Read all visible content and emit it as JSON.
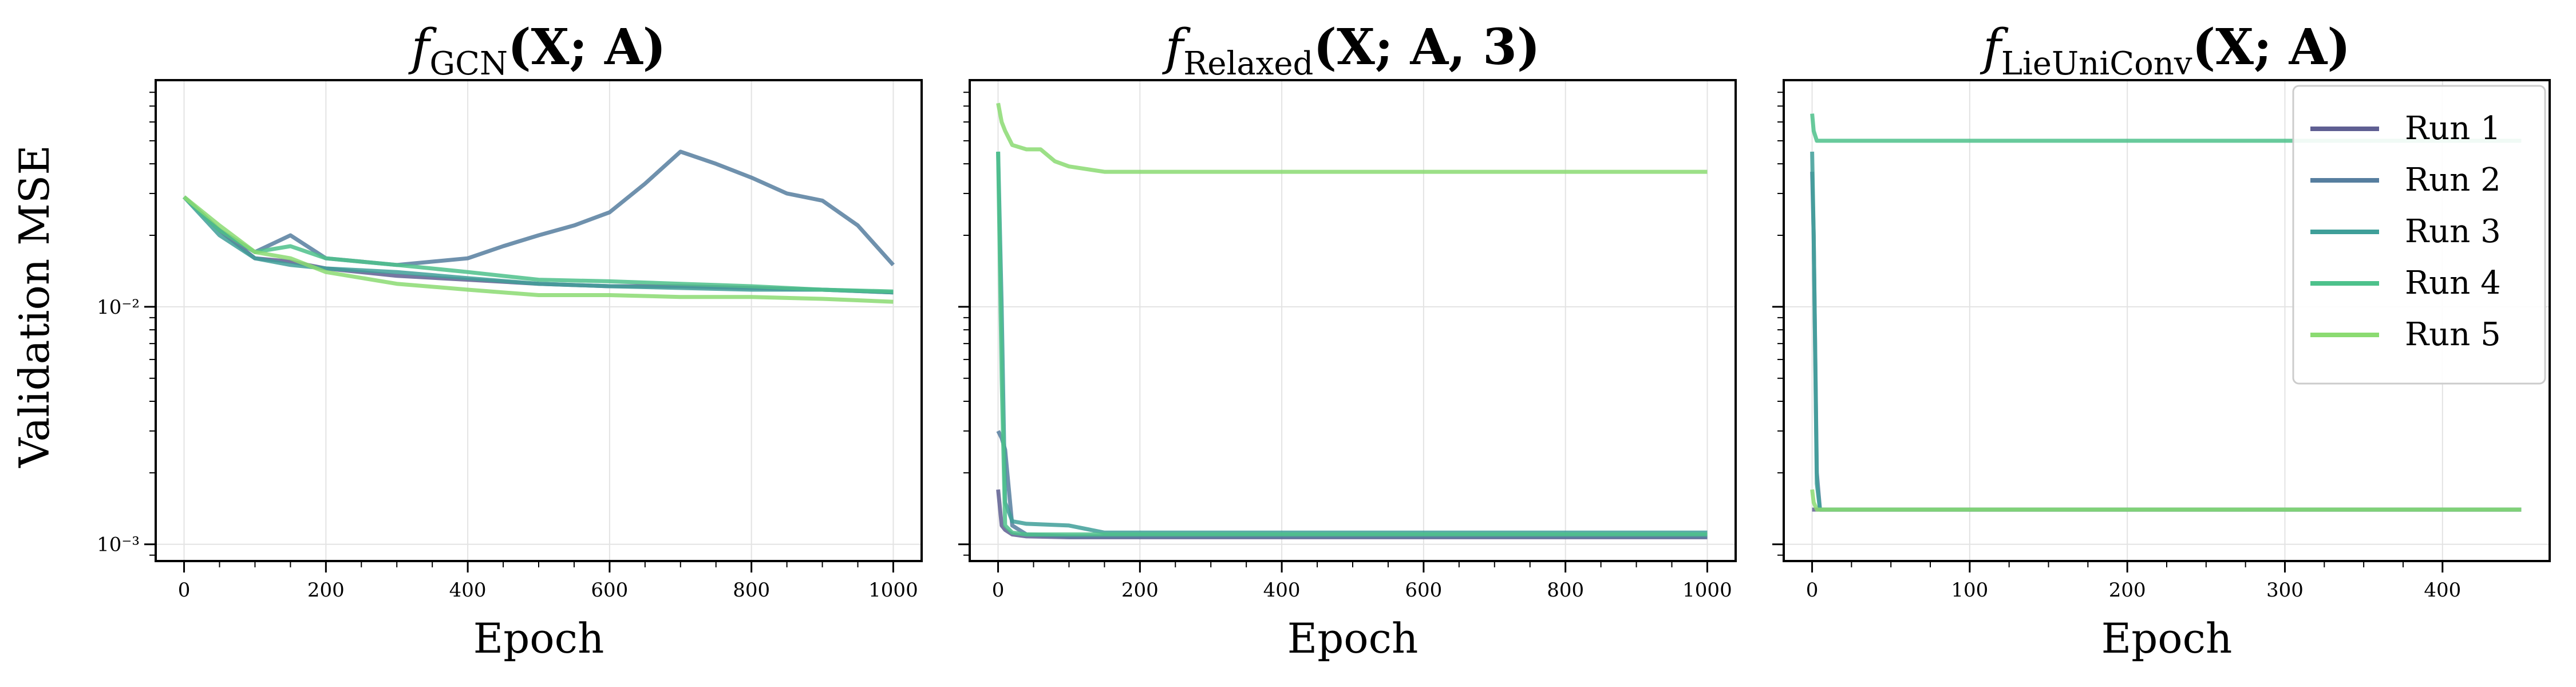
{
  "figure": {
    "ylabel": "Validation MSE",
    "xlabel": "Epoch",
    "yscale": "log",
    "grid": true,
    "legend_location": "top-right (third panel)"
  },
  "legend": {
    "entries": [
      "Run 1",
      "Run 2",
      "Run 3",
      "Run 4",
      "Run 5"
    ]
  },
  "colors": {
    "Run 1": "#5f5f92",
    "Run 2": "#567e9f",
    "Run 3": "#3f9f99",
    "Run 4": "#4dc18b",
    "Run 5": "#8bdb72"
  },
  "chart_data": [
    {
      "type": "line",
      "title_main": "f",
      "title_sub": "GCN",
      "title_args": "(X; A)",
      "xlabel": "Epoch",
      "ylabel": "Validation MSE",
      "xlim": [
        -40,
        1040
      ],
      "ylim": [
        0.00085,
        0.09
      ],
      "xticks": [
        0,
        200,
        400,
        600,
        800,
        1000
      ],
      "yticks": [
        0.001,
        0.01
      ],
      "ytick_labels": [
        "10⁻³",
        "10⁻²"
      ],
      "series": [
        {
          "name": "Run 1",
          "x": [
            0,
            50,
            100,
            150,
            200,
            300,
            400,
            500,
            600,
            700,
            800,
            900,
            1000
          ],
          "y": [
            0.029,
            0.021,
            0.016,
            0.0155,
            0.0145,
            0.0135,
            0.013,
            0.0125,
            0.0122,
            0.0122,
            0.012,
            0.0118,
            0.0115
          ]
        },
        {
          "name": "Run 2",
          "x": [
            0,
            50,
            100,
            150,
            200,
            300,
            400,
            450,
            500,
            550,
            600,
            650,
            700,
            750,
            800,
            850,
            900,
            950,
            1000
          ],
          "y": [
            0.029,
            0.021,
            0.017,
            0.02,
            0.016,
            0.015,
            0.016,
            0.018,
            0.02,
            0.022,
            0.025,
            0.033,
            0.045,
            0.04,
            0.035,
            0.03,
            0.028,
            0.022,
            0.015
          ]
        },
        {
          "name": "Run 3",
          "x": [
            0,
            50,
            100,
            150,
            200,
            300,
            400,
            500,
            600,
            700,
            800,
            900,
            1000
          ],
          "y": [
            0.029,
            0.02,
            0.016,
            0.015,
            0.0145,
            0.014,
            0.0132,
            0.0125,
            0.0122,
            0.012,
            0.0118,
            0.0118,
            0.0115
          ]
        },
        {
          "name": "Run 4",
          "x": [
            0,
            50,
            100,
            150,
            200,
            300,
            400,
            500,
            600,
            700,
            800,
            900,
            1000
          ],
          "y": [
            0.029,
            0.021,
            0.017,
            0.018,
            0.016,
            0.015,
            0.014,
            0.013,
            0.0128,
            0.0125,
            0.0122,
            0.0118,
            0.0116
          ]
        },
        {
          "name": "Run 5",
          "x": [
            0,
            50,
            100,
            150,
            200,
            300,
            400,
            500,
            600,
            700,
            800,
            900,
            1000
          ],
          "y": [
            0.029,
            0.022,
            0.017,
            0.016,
            0.014,
            0.0125,
            0.0118,
            0.0112,
            0.0112,
            0.011,
            0.011,
            0.0108,
            0.0105
          ]
        }
      ]
    },
    {
      "type": "line",
      "title_main": "f",
      "title_sub": "Relaxed",
      "title_args": "(X; A, 3)",
      "xlabel": "Epoch",
      "ylabel": "",
      "xlim": [
        -40,
        1040
      ],
      "ylim": [
        0.00085,
        0.09
      ],
      "xticks": [
        0,
        200,
        400,
        600,
        800,
        1000
      ],
      "yticks": [
        0.001,
        0.01
      ],
      "ytick_labels": [
        "",
        ""
      ],
      "series": [
        {
          "name": "Run 1",
          "x": [
            0,
            5,
            10,
            20,
            40,
            100,
            200,
            400,
            600,
            800,
            1000
          ],
          "y": [
            0.0017,
            0.0012,
            0.00115,
            0.0011,
            0.00108,
            0.00107,
            0.00107,
            0.00107,
            0.00107,
            0.00107,
            0.00107
          ]
        },
        {
          "name": "Run 2",
          "x": [
            0,
            5,
            10,
            20,
            40,
            100,
            200,
            400,
            600,
            800,
            1000
          ],
          "y": [
            0.003,
            0.0028,
            0.0025,
            0.0012,
            0.0011,
            0.00108,
            0.00108,
            0.00108,
            0.00108,
            0.00108,
            0.00108
          ]
        },
        {
          "name": "Run 3",
          "x": [
            0,
            5,
            10,
            20,
            40,
            100,
            150,
            200,
            400,
            600,
            800,
            1000
          ],
          "y": [
            0.045,
            0.01,
            0.0015,
            0.00125,
            0.00122,
            0.0012,
            0.00112,
            0.00112,
            0.00112,
            0.00112,
            0.00112,
            0.00112
          ]
        },
        {
          "name": "Run 4",
          "x": [
            0,
            5,
            10,
            20,
            40,
            100,
            200,
            400,
            600,
            800,
            1000
          ],
          "y": [
            0.045,
            0.005,
            0.0012,
            0.00112,
            0.0011,
            0.0011,
            0.0011,
            0.0011,
            0.0011,
            0.0011,
            0.0011
          ]
        },
        {
          "name": "Run 5",
          "x": [
            0,
            5,
            10,
            20,
            40,
            60,
            80,
            100,
            150,
            200,
            400,
            600,
            800,
            1000
          ],
          "y": [
            0.072,
            0.06,
            0.055,
            0.048,
            0.046,
            0.046,
            0.041,
            0.039,
            0.037,
            0.037,
            0.037,
            0.037,
            0.037,
            0.037
          ]
        }
      ]
    },
    {
      "type": "line",
      "title_main": "f",
      "title_sub": "LieUniConv",
      "title_args": "(X; A)",
      "xlabel": "Epoch",
      "ylabel": "",
      "xlim": [
        -18,
        468
      ],
      "ylim": [
        0.00085,
        0.09
      ],
      "xticks": [
        0,
        100,
        200,
        300,
        400
      ],
      "yticks": [
        0.001,
        0.01
      ],
      "ytick_labels": [
        "",
        ""
      ],
      "series": [
        {
          "name": "Run 1",
          "x": [
            0,
            2,
            4,
            10,
            50,
            100,
            200,
            300,
            400,
            450
          ],
          "y": [
            0.0014,
            0.0014,
            0.0014,
            0.0014,
            0.0014,
            0.0014,
            0.0014,
            0.0014,
            0.0014,
            0.0014
          ]
        },
        {
          "name": "Run 2",
          "x": [
            0,
            1,
            3,
            5,
            10,
            50,
            100,
            200,
            300,
            400,
            450
          ],
          "y": [
            0.037,
            0.02,
            0.002,
            0.0014,
            0.0014,
            0.0014,
            0.0014,
            0.0014,
            0.0014,
            0.0014,
            0.0014
          ]
        },
        {
          "name": "Run 3",
          "x": [
            0,
            1,
            3,
            5,
            10,
            50,
            100,
            200,
            300,
            400,
            450
          ],
          "y": [
            0.045,
            0.02,
            0.0018,
            0.0014,
            0.0014,
            0.0014,
            0.0014,
            0.0014,
            0.0014,
            0.0014,
            0.0014
          ]
        },
        {
          "name": "Run 4",
          "x": [
            0,
            1,
            3,
            10,
            50,
            100,
            200,
            300,
            400,
            450
          ],
          "y": [
            0.065,
            0.055,
            0.05,
            0.05,
            0.05,
            0.05,
            0.05,
            0.05,
            0.05,
            0.05
          ]
        },
        {
          "name": "Run 5",
          "x": [
            0,
            1,
            3,
            5,
            10,
            50,
            100,
            200,
            300,
            400,
            450
          ],
          "y": [
            0.0017,
            0.0015,
            0.0014,
            0.0014,
            0.0014,
            0.0014,
            0.0014,
            0.0014,
            0.0014,
            0.0014,
            0.0014
          ]
        }
      ]
    }
  ]
}
